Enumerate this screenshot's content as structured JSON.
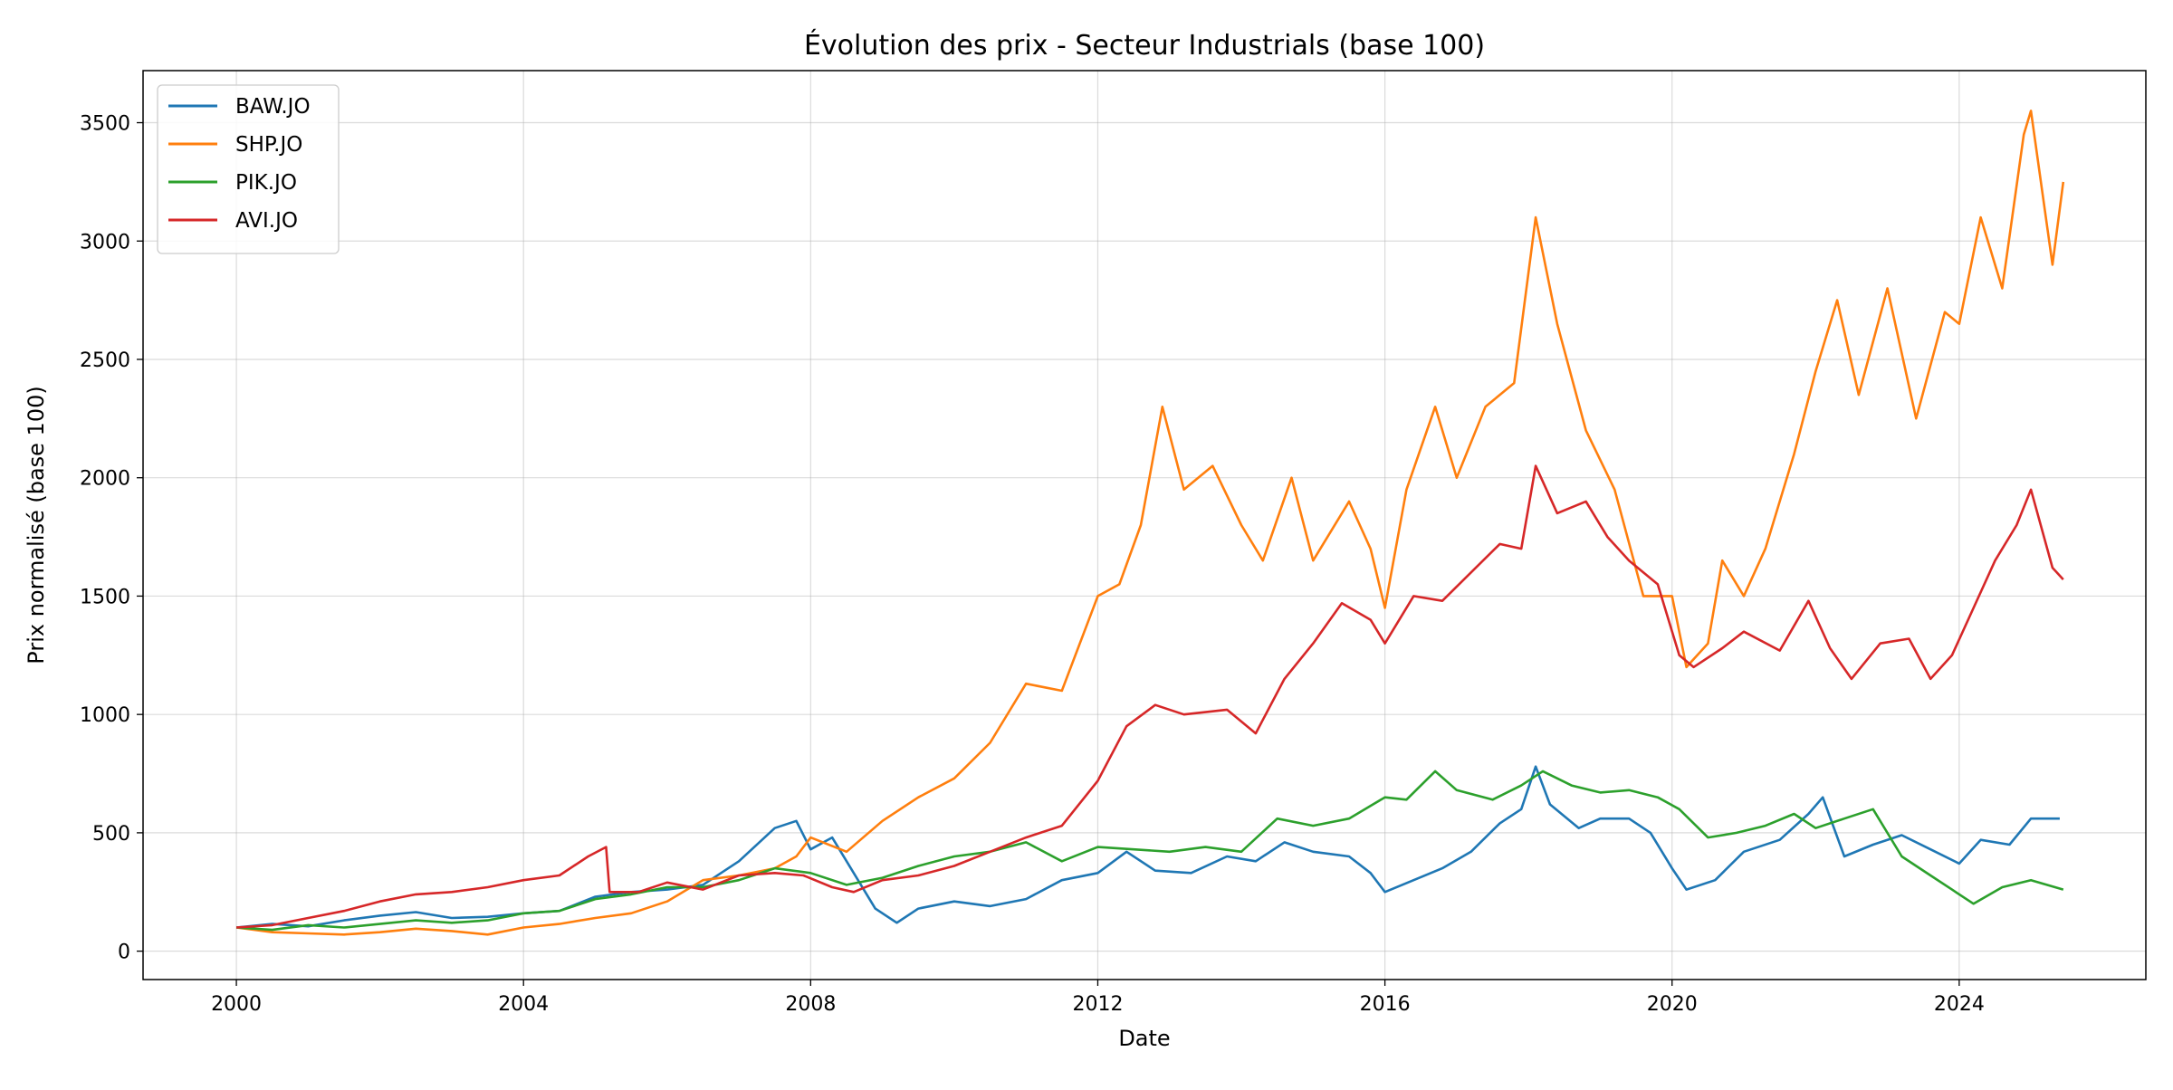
{
  "chart_data": {
    "type": "line",
    "title": "Évolution des prix - Secteur Industrials (base 100)",
    "xlabel": "Date",
    "ylabel": "Prix normalisé (base 100)",
    "xlim": [
      1998.7,
      2026.6
    ],
    "ylim": [
      -120,
      3720
    ],
    "x_ticks": [
      2000,
      2004,
      2008,
      2012,
      2016,
      2020,
      2024
    ],
    "y_ticks": [
      0,
      500,
      1000,
      1500,
      2000,
      2500,
      3000,
      3500
    ],
    "grid": true,
    "legend_position": "top-left",
    "series": [
      {
        "name": "BAW.JO",
        "color": "#1f77b4",
        "points": [
          [
            2000.0,
            100
          ],
          [
            2000.5,
            115
          ],
          [
            2001.0,
            105
          ],
          [
            2001.5,
            130
          ],
          [
            2002.0,
            150
          ],
          [
            2002.5,
            165
          ],
          [
            2003.0,
            140
          ],
          [
            2003.5,
            145
          ],
          [
            2004.0,
            160
          ],
          [
            2004.5,
            170
          ],
          [
            2005.0,
            230
          ],
          [
            2005.5,
            250
          ],
          [
            2006.0,
            260
          ],
          [
            2006.5,
            280
          ],
          [
            2007.0,
            380
          ],
          [
            2007.5,
            520
          ],
          [
            2007.8,
            550
          ],
          [
            2008.0,
            430
          ],
          [
            2008.3,
            480
          ],
          [
            2008.6,
            330
          ],
          [
            2008.9,
            180
          ],
          [
            2009.2,
            120
          ],
          [
            2009.5,
            180
          ],
          [
            2010.0,
            210
          ],
          [
            2010.5,
            190
          ],
          [
            2011.0,
            220
          ],
          [
            2011.5,
            300
          ],
          [
            2012.0,
            330
          ],
          [
            2012.4,
            420
          ],
          [
            2012.8,
            340
          ],
          [
            2013.3,
            330
          ],
          [
            2013.8,
            400
          ],
          [
            2014.2,
            380
          ],
          [
            2014.6,
            460
          ],
          [
            2015.0,
            420
          ],
          [
            2015.5,
            400
          ],
          [
            2015.8,
            330
          ],
          [
            2016.0,
            250
          ],
          [
            2016.4,
            300
          ],
          [
            2016.8,
            350
          ],
          [
            2017.2,
            420
          ],
          [
            2017.6,
            540
          ],
          [
            2017.9,
            600
          ],
          [
            2018.1,
            780
          ],
          [
            2018.3,
            620
          ],
          [
            2018.7,
            520
          ],
          [
            2019.0,
            560
          ],
          [
            2019.4,
            560
          ],
          [
            2019.7,
            500
          ],
          [
            2020.0,
            350
          ],
          [
            2020.2,
            260
          ],
          [
            2020.6,
            300
          ],
          [
            2021.0,
            420
          ],
          [
            2021.5,
            470
          ],
          [
            2021.9,
            580
          ],
          [
            2022.1,
            650
          ],
          [
            2022.4,
            400
          ],
          [
            2022.8,
            450
          ],
          [
            2023.2,
            490
          ],
          [
            2023.6,
            430
          ],
          [
            2024.0,
            370
          ],
          [
            2024.3,
            470
          ],
          [
            2024.7,
            450
          ],
          [
            2025.0,
            560
          ],
          [
            2025.4,
            560
          ]
        ]
      },
      {
        "name": "SHP.JO",
        "color": "#ff7f0e",
        "points": [
          [
            2000.0,
            100
          ],
          [
            2000.5,
            80
          ],
          [
            2001.0,
            75
          ],
          [
            2001.5,
            70
          ],
          [
            2002.0,
            80
          ],
          [
            2002.5,
            95
          ],
          [
            2003.0,
            85
          ],
          [
            2003.5,
            70
          ],
          [
            2004.0,
            100
          ],
          [
            2004.5,
            115
          ],
          [
            2005.0,
            140
          ],
          [
            2005.5,
            160
          ],
          [
            2006.0,
            210
          ],
          [
            2006.5,
            300
          ],
          [
            2007.0,
            320
          ],
          [
            2007.5,
            350
          ],
          [
            2007.8,
            400
          ],
          [
            2008.0,
            480
          ],
          [
            2008.5,
            420
          ],
          [
            2009.0,
            550
          ],
          [
            2009.5,
            650
          ],
          [
            2010.0,
            730
          ],
          [
            2010.5,
            880
          ],
          [
            2011.0,
            1130
          ],
          [
            2011.5,
            1100
          ],
          [
            2012.0,
            1500
          ],
          [
            2012.3,
            1550
          ],
          [
            2012.6,
            1800
          ],
          [
            2012.9,
            2300
          ],
          [
            2013.2,
            1950
          ],
          [
            2013.6,
            2050
          ],
          [
            2014.0,
            1800
          ],
          [
            2014.3,
            1650
          ],
          [
            2014.7,
            2000
          ],
          [
            2015.0,
            1650
          ],
          [
            2015.5,
            1900
          ],
          [
            2015.8,
            1700
          ],
          [
            2016.0,
            1450
          ],
          [
            2016.3,
            1950
          ],
          [
            2016.7,
            2300
          ],
          [
            2017.0,
            2000
          ],
          [
            2017.4,
            2300
          ],
          [
            2017.8,
            2400
          ],
          [
            2018.1,
            3100
          ],
          [
            2018.4,
            2650
          ],
          [
            2018.8,
            2200
          ],
          [
            2019.2,
            1950
          ],
          [
            2019.6,
            1500
          ],
          [
            2020.0,
            1500
          ],
          [
            2020.2,
            1200
          ],
          [
            2020.5,
            1300
          ],
          [
            2020.7,
            1650
          ],
          [
            2021.0,
            1500
          ],
          [
            2021.3,
            1700
          ],
          [
            2021.7,
            2100
          ],
          [
            2022.0,
            2450
          ],
          [
            2022.3,
            2750
          ],
          [
            2022.6,
            2350
          ],
          [
            2023.0,
            2800
          ],
          [
            2023.4,
            2250
          ],
          [
            2023.8,
            2700
          ],
          [
            2024.0,
            2650
          ],
          [
            2024.3,
            3100
          ],
          [
            2024.6,
            2800
          ],
          [
            2024.9,
            3450
          ],
          [
            2025.0,
            3550
          ],
          [
            2025.3,
            2900
          ],
          [
            2025.45,
            3250
          ]
        ]
      },
      {
        "name": "PIK.JO",
        "color": "#2ca02c",
        "points": [
          [
            2000.0,
            100
          ],
          [
            2000.5,
            90
          ],
          [
            2001.0,
            110
          ],
          [
            2001.5,
            100
          ],
          [
            2002.0,
            115
          ],
          [
            2002.5,
            130
          ],
          [
            2003.0,
            120
          ],
          [
            2003.5,
            130
          ],
          [
            2004.0,
            160
          ],
          [
            2004.5,
            170
          ],
          [
            2005.0,
            220
          ],
          [
            2005.5,
            240
          ],
          [
            2006.0,
            270
          ],
          [
            2006.5,
            270
          ],
          [
            2007.0,
            300
          ],
          [
            2007.5,
            350
          ],
          [
            2008.0,
            330
          ],
          [
            2008.5,
            280
          ],
          [
            2009.0,
            310
          ],
          [
            2009.5,
            360
          ],
          [
            2010.0,
            400
          ],
          [
            2010.5,
            420
          ],
          [
            2011.0,
            460
          ],
          [
            2011.5,
            380
          ],
          [
            2012.0,
            440
          ],
          [
            2012.5,
            430
          ],
          [
            2013.0,
            420
          ],
          [
            2013.5,
            440
          ],
          [
            2014.0,
            420
          ],
          [
            2014.5,
            560
          ],
          [
            2015.0,
            530
          ],
          [
            2015.5,
            560
          ],
          [
            2016.0,
            650
          ],
          [
            2016.3,
            640
          ],
          [
            2016.7,
            760
          ],
          [
            2017.0,
            680
          ],
          [
            2017.5,
            640
          ],
          [
            2017.9,
            700
          ],
          [
            2018.2,
            760
          ],
          [
            2018.6,
            700
          ],
          [
            2019.0,
            670
          ],
          [
            2019.4,
            680
          ],
          [
            2019.8,
            650
          ],
          [
            2020.1,
            600
          ],
          [
            2020.5,
            480
          ],
          [
            2020.9,
            500
          ],
          [
            2021.3,
            530
          ],
          [
            2021.7,
            580
          ],
          [
            2022.0,
            520
          ],
          [
            2022.4,
            560
          ],
          [
            2022.8,
            600
          ],
          [
            2023.2,
            400
          ],
          [
            2023.6,
            320
          ],
          [
            2023.9,
            260
          ],
          [
            2024.2,
            200
          ],
          [
            2024.6,
            270
          ],
          [
            2025.0,
            300
          ],
          [
            2025.45,
            260
          ]
        ]
      },
      {
        "name": "AVI.JO",
        "color": "#d62728",
        "points": [
          [
            2000.0,
            100
          ],
          [
            2000.5,
            110
          ],
          [
            2001.0,
            140
          ],
          [
            2001.5,
            170
          ],
          [
            2002.0,
            210
          ],
          [
            2002.5,
            240
          ],
          [
            2003.0,
            250
          ],
          [
            2003.5,
            270
          ],
          [
            2004.0,
            300
          ],
          [
            2004.5,
            320
          ],
          [
            2004.9,
            400
          ],
          [
            2005.15,
            440
          ],
          [
            2005.2,
            250
          ],
          [
            2005.6,
            250
          ],
          [
            2006.0,
            290
          ],
          [
            2006.5,
            260
          ],
          [
            2007.0,
            320
          ],
          [
            2007.5,
            330
          ],
          [
            2007.9,
            320
          ],
          [
            2008.3,
            270
          ],
          [
            2008.6,
            250
          ],
          [
            2009.0,
            300
          ],
          [
            2009.5,
            320
          ],
          [
            2010.0,
            360
          ],
          [
            2010.5,
            420
          ],
          [
            2011.0,
            480
          ],
          [
            2011.5,
            530
          ],
          [
            2012.0,
            720
          ],
          [
            2012.4,
            950
          ],
          [
            2012.8,
            1040
          ],
          [
            2013.2,
            1000
          ],
          [
            2013.8,
            1020
          ],
          [
            2014.2,
            920
          ],
          [
            2014.6,
            1150
          ],
          [
            2015.0,
            1300
          ],
          [
            2015.4,
            1470
          ],
          [
            2015.8,
            1400
          ],
          [
            2016.0,
            1300
          ],
          [
            2016.4,
            1500
          ],
          [
            2016.8,
            1480
          ],
          [
            2017.2,
            1600
          ],
          [
            2017.6,
            1720
          ],
          [
            2017.9,
            1700
          ],
          [
            2018.1,
            2050
          ],
          [
            2018.4,
            1850
          ],
          [
            2018.8,
            1900
          ],
          [
            2019.1,
            1750
          ],
          [
            2019.4,
            1650
          ],
          [
            2019.8,
            1550
          ],
          [
            2020.1,
            1250
          ],
          [
            2020.3,
            1200
          ],
          [
            2020.7,
            1280
          ],
          [
            2021.0,
            1350
          ],
          [
            2021.5,
            1270
          ],
          [
            2021.9,
            1480
          ],
          [
            2022.2,
            1280
          ],
          [
            2022.5,
            1150
          ],
          [
            2022.9,
            1300
          ],
          [
            2023.3,
            1320
          ],
          [
            2023.6,
            1150
          ],
          [
            2023.9,
            1250
          ],
          [
            2024.2,
            1450
          ],
          [
            2024.5,
            1650
          ],
          [
            2024.8,
            1800
          ],
          [
            2025.0,
            1950
          ],
          [
            2025.3,
            1620
          ],
          [
            2025.45,
            1570
          ]
        ]
      }
    ]
  }
}
